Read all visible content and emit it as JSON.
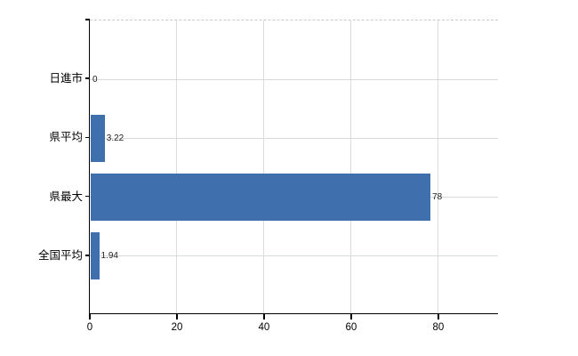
{
  "chart_data": {
    "type": "bar",
    "orientation": "horizontal",
    "title": "",
    "xlabel": "",
    "ylabel": "",
    "categories": [
      "日進市",
      "県平均",
      "県最大",
      "全国平均"
    ],
    "values": [
      0,
      3.22,
      78,
      1.94
    ],
    "value_labels": [
      "0",
      "3.22",
      "78",
      "1.94"
    ],
    "x_ticks": [
      0,
      20,
      40,
      60,
      80
    ],
    "x_tick_labels": [
      "0",
      "20",
      "40",
      "60",
      "80"
    ],
    "xlim": [
      0,
      93.7
    ],
    "grid": true,
    "legend": false,
    "colors": {
      "bar": "#3f6fac",
      "grid_vertical": "#dcdcdc",
      "grid_horizontal": "#d5dbd5",
      "axis": "#000000",
      "value_label": "#222222",
      "plot_border_top": "#c9c9c9",
      "background": "#ffffff"
    }
  }
}
